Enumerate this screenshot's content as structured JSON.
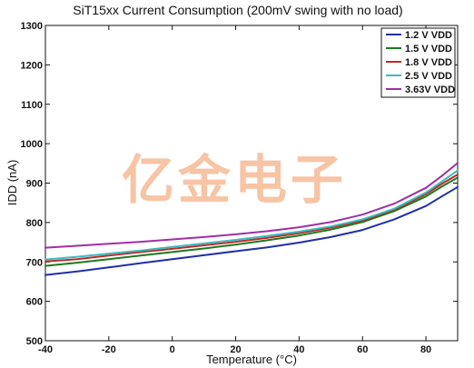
{
  "watermark": {
    "text": "亿金电子",
    "color": "#f4b087"
  },
  "chart_data": {
    "type": "line",
    "title": "SiT15xx Current Consumption (200mV swing with no load)",
    "xlabel": "Temperature (°C)",
    "ylabel": "IDD (nA)",
    "xlim": [
      -40,
      90
    ],
    "ylim": [
      500,
      1300
    ],
    "xticks": [
      -40,
      -20,
      0,
      20,
      40,
      60,
      80
    ],
    "yticks": [
      500,
      600,
      700,
      800,
      900,
      1000,
      1100,
      1200,
      1300
    ],
    "grid": false,
    "legend_position": "top-right",
    "x": [
      -40,
      -30,
      -20,
      -10,
      0,
      10,
      20,
      30,
      40,
      50,
      60,
      70,
      80,
      85,
      90
    ],
    "series": [
      {
        "name": "1.2 V VDD",
        "color": "#1f2fa8",
        "values": [
          667,
          676,
          686,
          697,
          707,
          717,
          727,
          737,
          749,
          763,
          781,
          808,
          842,
          866,
          890
        ]
      },
      {
        "name": "1.5 V VDD",
        "color": "#1d7a1d",
        "values": [
          690,
          698,
          707,
          716,
          725,
          734,
          744,
          755,
          767,
          782,
          801,
          829,
          866,
          891,
          914
        ]
      },
      {
        "name": "1.8 V VDD",
        "color": "#c0282a",
        "values": [
          701,
          707,
          716,
          725,
          733,
          742,
          751,
          761,
          773,
          787,
          805,
          833,
          872,
          898,
          922
        ]
      },
      {
        "name": "2.5 V VDD",
        "color": "#3bbcc0",
        "values": [
          706,
          713,
          721,
          729,
          738,
          747,
          756,
          766,
          777,
          790,
          808,
          835,
          876,
          904,
          932
        ]
      },
      {
        "name": "3.63V VDD",
        "color": "#a12ea8",
        "values": [
          736,
          741,
          746,
          751,
          757,
          763,
          770,
          778,
          788,
          801,
          820,
          848,
          888,
          918,
          951
        ]
      }
    ]
  }
}
